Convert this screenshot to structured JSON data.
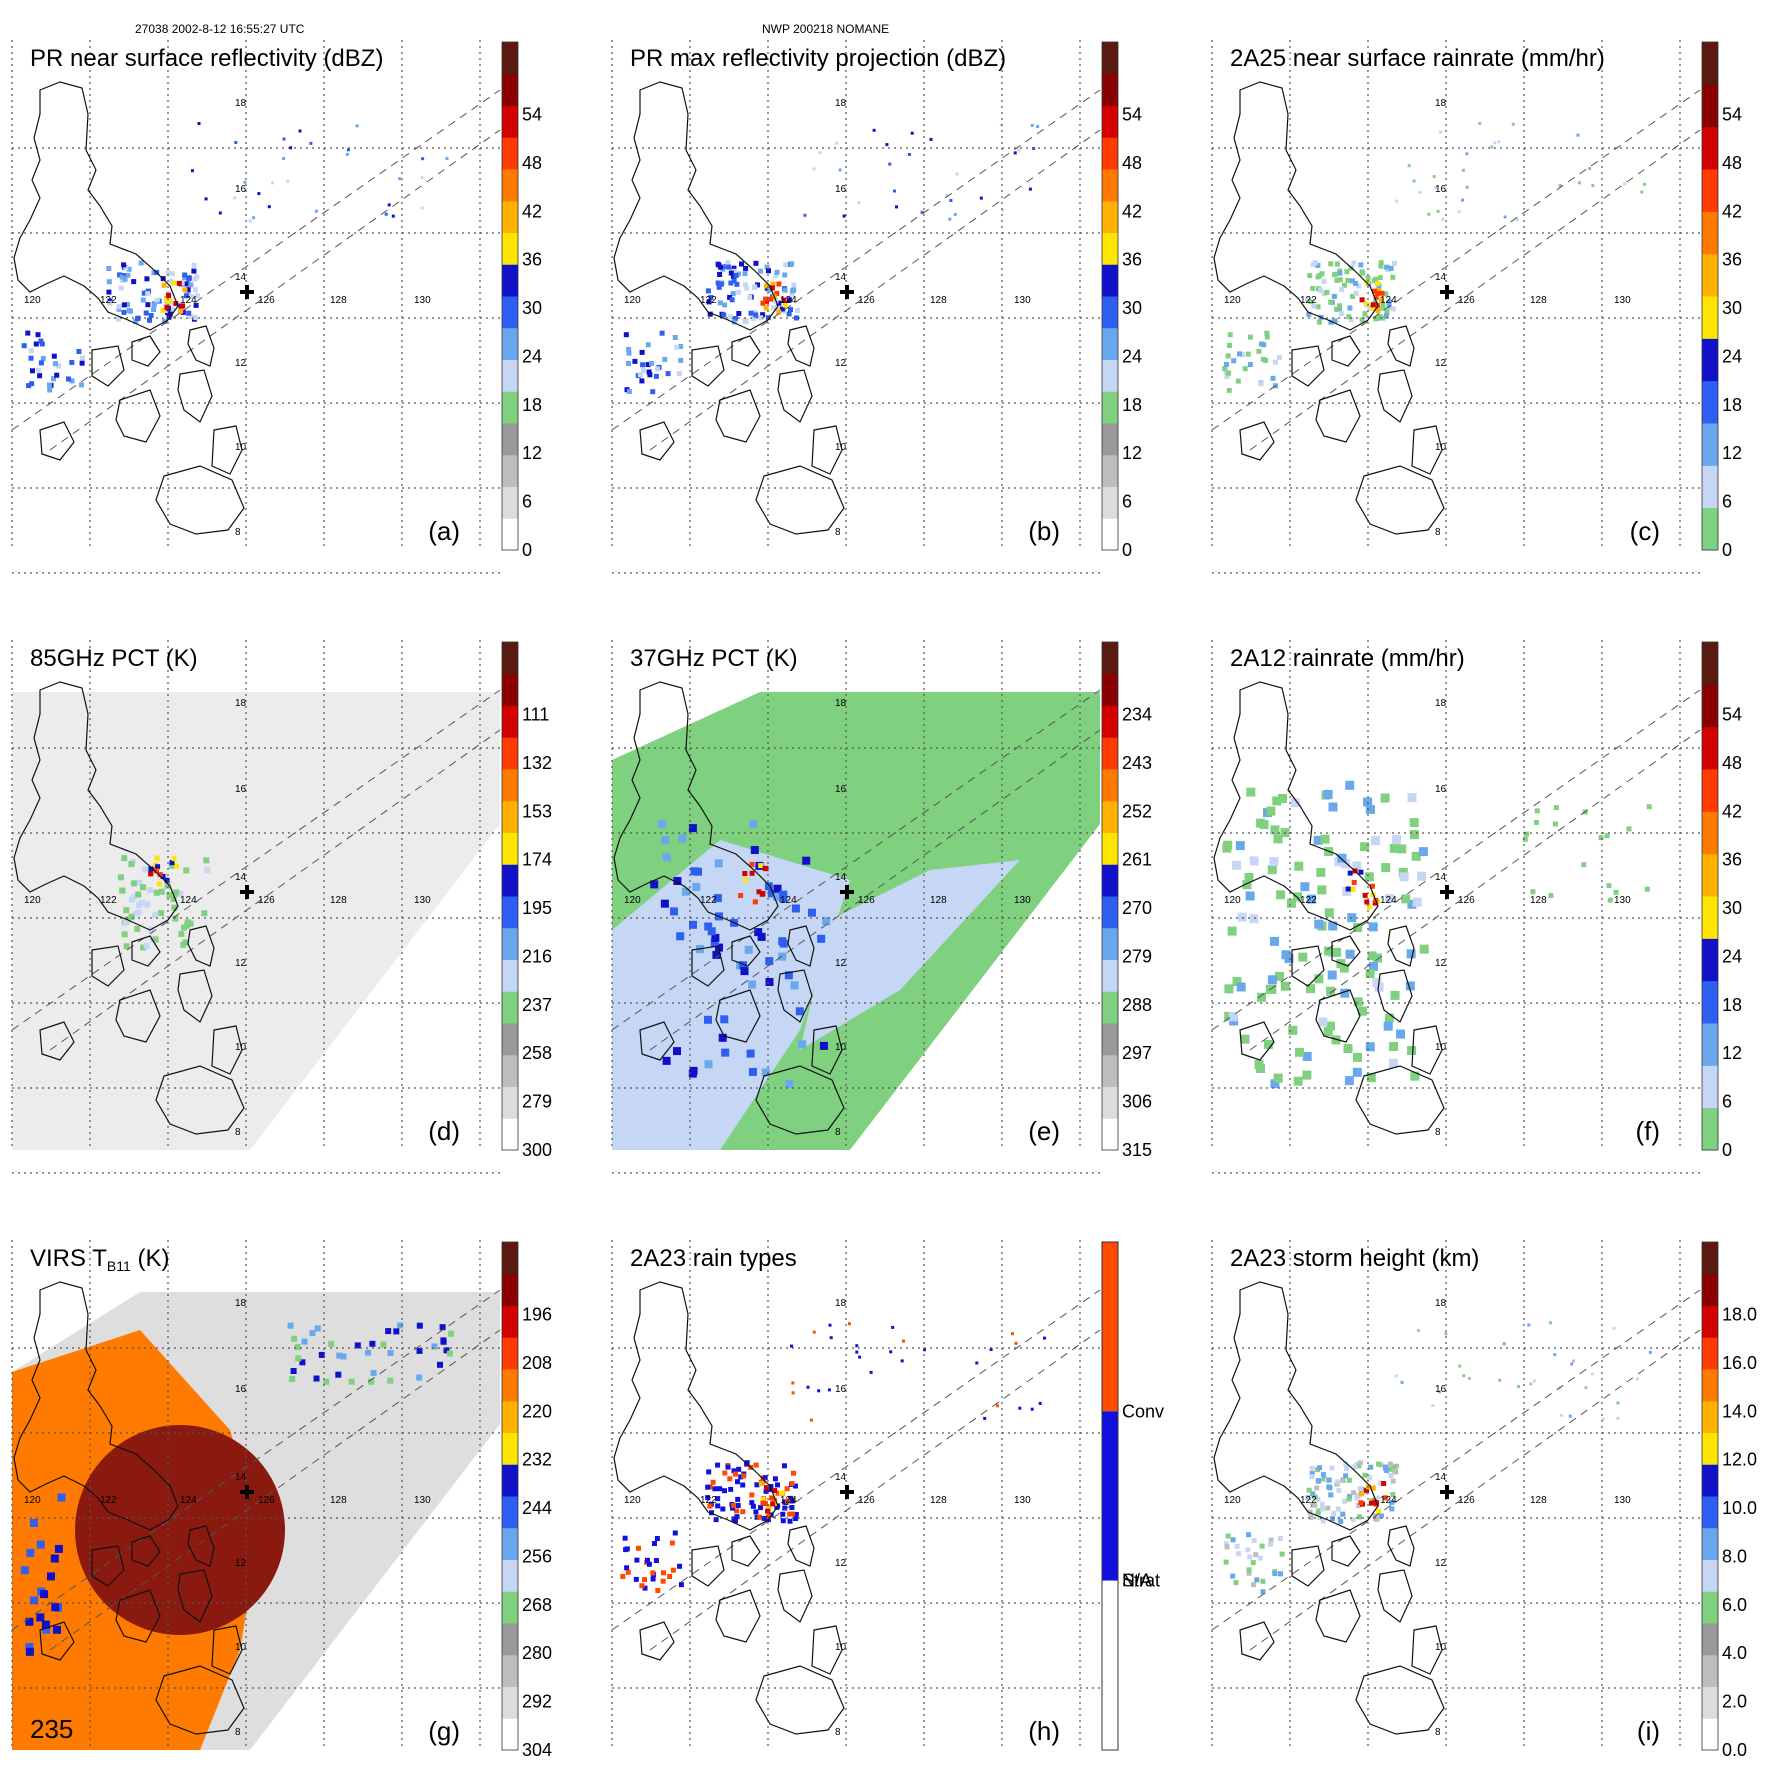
{
  "header": {
    "orbit_time": "27038 2002-8-12 16:55:27 UTC",
    "storm_id": "NWP 200218 NOMANE"
  },
  "chart_data": [
    {
      "id": "a",
      "type": "heatmap",
      "title": "PR near surface reflectivity (dBZ)",
      "panel_label": "(a)",
      "colorbar_ticks": [
        "0",
        "6",
        "12",
        "18",
        "24",
        "30",
        "36",
        "42",
        "48",
        "54"
      ],
      "colorbar_colors": [
        "#ffffff",
        "#dcdcdc",
        "#bdbdbd",
        "#9a9a9a",
        "#7fd07f",
        "#c6d6f5",
        "#6aa8ee",
        "#2f5ff0",
        "#1010c8",
        "#ffe600",
        "#ffb000",
        "#ff7a00",
        "#ff3c00",
        "#d40000",
        "#8a0000",
        "#5a1a10"
      ],
      "lon_ticks": [
        "120",
        "122",
        "124",
        "126",
        "128",
        "130"
      ],
      "lat_ticks": [
        "18",
        "16",
        "14",
        "12",
        "10",
        "8"
      ]
    },
    {
      "id": "b",
      "type": "heatmap",
      "title": "PR max reflectivity projection (dBZ)",
      "panel_label": "(b)",
      "colorbar_ticks": [
        "0",
        "6",
        "12",
        "18",
        "24",
        "30",
        "36",
        "42",
        "48",
        "54"
      ],
      "colorbar_colors": [
        "#ffffff",
        "#dcdcdc",
        "#bdbdbd",
        "#9a9a9a",
        "#7fd07f",
        "#c6d6f5",
        "#6aa8ee",
        "#2f5ff0",
        "#1010c8",
        "#ffe600",
        "#ffb000",
        "#ff7a00",
        "#ff3c00",
        "#d40000",
        "#8a0000",
        "#5a1a10"
      ],
      "lon_ticks": [
        "120",
        "122",
        "124",
        "126",
        "128",
        "130"
      ],
      "lat_ticks": [
        "18",
        "16",
        "14",
        "12",
        "10",
        "8"
      ]
    },
    {
      "id": "c",
      "type": "heatmap",
      "title": "2A25 near surface rainrate (mm/hr)",
      "panel_label": "(c)",
      "colorbar_ticks": [
        "0",
        "6",
        "12",
        "18",
        "24",
        "30",
        "36",
        "42",
        "48",
        "54"
      ],
      "colorbar_colors": [
        "#7fd07f",
        "#c6d6f5",
        "#6aa8ee",
        "#2f5ff0",
        "#1010c8",
        "#ffe600",
        "#ffb000",
        "#ff7a00",
        "#ff3c00",
        "#d40000",
        "#8a0000",
        "#5a1a10"
      ],
      "lon_ticks": [
        "120",
        "122",
        "124",
        "126",
        "128",
        "130"
      ],
      "lat_ticks": [
        "18",
        "16",
        "14",
        "12",
        "10",
        "8"
      ]
    },
    {
      "id": "d",
      "type": "heatmap",
      "title": "85GHz PCT (K)",
      "panel_label": "(d)",
      "colorbar_ticks": [
        "300",
        "279",
        "258",
        "237",
        "216",
        "195",
        "174",
        "153",
        "132",
        "111"
      ],
      "colorbar_colors": [
        "#ffffff",
        "#dcdcdc",
        "#bdbdbd",
        "#9a9a9a",
        "#7fd07f",
        "#c6d6f5",
        "#6aa8ee",
        "#2f5ff0",
        "#1010c8",
        "#ffe600",
        "#ffb000",
        "#ff7a00",
        "#ff3c00",
        "#d40000",
        "#8a0000",
        "#5a1a10"
      ],
      "lon_ticks": [
        "120",
        "122",
        "124",
        "126",
        "128",
        "130"
      ],
      "lat_ticks": [
        "18",
        "16",
        "14",
        "12",
        "10",
        "8"
      ]
    },
    {
      "id": "e",
      "type": "heatmap",
      "title": "37GHz PCT (K)",
      "panel_label": "(e)",
      "colorbar_ticks": [
        "315",
        "306",
        "297",
        "288",
        "279",
        "270",
        "261",
        "252",
        "243",
        "234"
      ],
      "colorbar_colors": [
        "#ffffff",
        "#dcdcdc",
        "#bdbdbd",
        "#9a9a9a",
        "#7fd07f",
        "#c6d6f5",
        "#6aa8ee",
        "#2f5ff0",
        "#1010c8",
        "#ffe600",
        "#ffb000",
        "#ff7a00",
        "#ff3c00",
        "#d40000",
        "#8a0000",
        "#5a1a10"
      ],
      "lon_ticks": [
        "120",
        "122",
        "124",
        "126",
        "128",
        "130"
      ],
      "lat_ticks": [
        "18",
        "16",
        "14",
        "12",
        "10",
        "8"
      ]
    },
    {
      "id": "f",
      "type": "heatmap",
      "title": "2A12 rainrate (mm/hr)",
      "panel_label": "(f)",
      "colorbar_ticks": [
        "0",
        "6",
        "12",
        "18",
        "24",
        "30",
        "36",
        "42",
        "48",
        "54"
      ],
      "colorbar_colors": [
        "#7fd07f",
        "#c6d6f5",
        "#6aa8ee",
        "#2f5ff0",
        "#1010c8",
        "#ffe600",
        "#ffb000",
        "#ff7a00",
        "#ff3c00",
        "#d40000",
        "#8a0000",
        "#5a1a10"
      ],
      "lon_ticks": [
        "120",
        "122",
        "124",
        "126",
        "128",
        "130"
      ],
      "lat_ticks": [
        "18",
        "16",
        "14",
        "12",
        "10",
        "8"
      ]
    },
    {
      "id": "g",
      "type": "heatmap",
      "title": "VIRS T",
      "title_sub": "B11",
      "title_tail": " (K)",
      "panel_label": "(g)",
      "colorbar_ticks": [
        "304",
        "292",
        "280",
        "268",
        "256",
        "244",
        "232",
        "220",
        "208",
        "196"
      ],
      "colorbar_colors": [
        "#ffffff",
        "#dcdcdc",
        "#bdbdbd",
        "#9a9a9a",
        "#7fd07f",
        "#c6d6f5",
        "#6aa8ee",
        "#2f5ff0",
        "#1010c8",
        "#ffe600",
        "#ffb000",
        "#ff7a00",
        "#ff3c00",
        "#d40000",
        "#8a0000",
        "#5a1a10"
      ],
      "corner_value": "235",
      "lon_ticks": [
        "120",
        "122",
        "124",
        "126",
        "128",
        "130"
      ],
      "lat_ticks": [
        "18",
        "16",
        "14",
        "12",
        "10",
        "8"
      ]
    },
    {
      "id": "h",
      "type": "heatmap",
      "title": "2A23 rain types",
      "panel_label": "(h)",
      "categories": [
        "N/A",
        "Strat",
        "Conv"
      ],
      "category_colors": [
        "#ffffff",
        "#1010e0",
        "#ff4a00"
      ],
      "lon_ticks": [
        "120",
        "122",
        "124",
        "126",
        "128",
        "130"
      ],
      "lat_ticks": [
        "18",
        "16",
        "14",
        "12",
        "10",
        "8"
      ]
    },
    {
      "id": "i",
      "type": "heatmap",
      "title": "2A23 storm height (km)",
      "panel_label": "(i)",
      "colorbar_ticks": [
        "0.0",
        "2.0",
        "4.0",
        "6.0",
        "8.0",
        "10.0",
        "12.0",
        "14.0",
        "16.0",
        "18.0"
      ],
      "colorbar_colors": [
        "#ffffff",
        "#dcdcdc",
        "#bdbdbd",
        "#9a9a9a",
        "#7fd07f",
        "#c6d6f5",
        "#6aa8ee",
        "#2f5ff0",
        "#1010c8",
        "#ffe600",
        "#ffb000",
        "#ff7a00",
        "#ff3c00",
        "#d40000",
        "#8a0000",
        "#5a1a10"
      ],
      "lon_ticks": [
        "120",
        "122",
        "124",
        "126",
        "128",
        "130"
      ],
      "lat_ticks": [
        "18",
        "16",
        "14",
        "12",
        "10",
        "8"
      ]
    }
  ]
}
